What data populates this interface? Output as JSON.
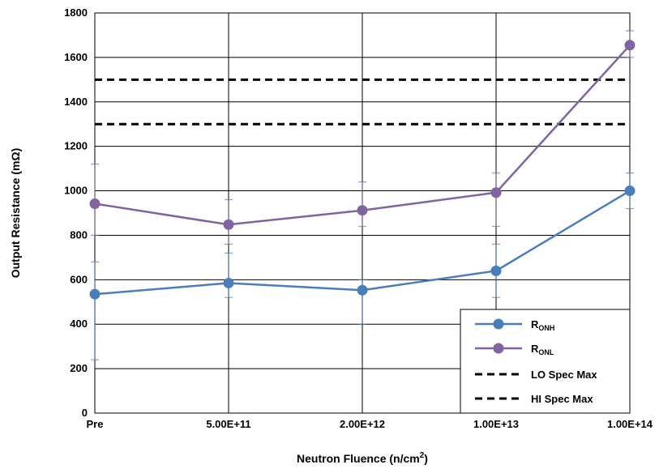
{
  "chart_data": {
    "type": "line",
    "title": "",
    "xlabel": "Neutron Fluence (n/cm",
    "xlabel_sup": "2",
    "xlabel_suffix": ")",
    "ylabel": "Output Resistance (mΩ)",
    "categories": [
      "Pre",
      "5.00E+11",
      "2.00E+12",
      "1.00E+13",
      "1.00E+14"
    ],
    "ylim": [
      0,
      1800
    ],
    "yticks": [
      0,
      200,
      400,
      600,
      800,
      1000,
      1200,
      1400,
      1600,
      1800
    ],
    "grid": true,
    "legend_position": "bottom-right",
    "series": [
      {
        "name": "RONH",
        "name_main": "R",
        "name_sub": "ONH",
        "color": "#4a7ebb",
        "marker": "circle",
        "values": [
          535,
          585,
          553,
          640,
          1000
        ],
        "error_low": [
          240,
          520,
          400,
          520,
          920
        ],
        "error_high": [
          680,
          720,
          600,
          760,
          1080
        ]
      },
      {
        "name": "RONL",
        "name_main": "R",
        "name_sub": "ONL",
        "color": "#8064a2",
        "marker": "circle",
        "values": [
          942,
          848,
          912,
          992,
          1655
        ],
        "error_low": [
          800,
          760,
          840,
          840,
          1600
        ],
        "error_high": [
          1120,
          960,
          1040,
          1080,
          1720
        ]
      },
      {
        "name": "LO Spec Max",
        "color": "#000000",
        "style": "dashed",
        "constant": 1300
      },
      {
        "name": "HI Spec Max",
        "color": "#000000",
        "style": "dashed",
        "constant": 1500
      }
    ]
  }
}
